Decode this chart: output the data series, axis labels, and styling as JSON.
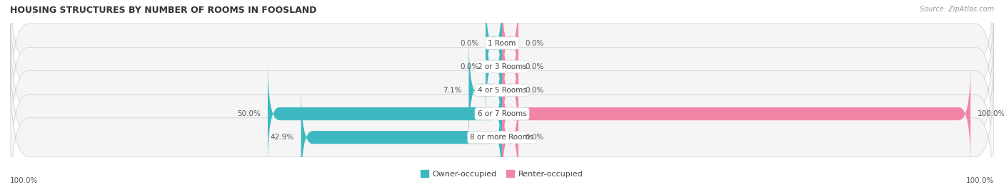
{
  "title": "HOUSING STRUCTURES BY NUMBER OF ROOMS IN FOOSLAND",
  "source": "Source: ZipAtlas.com",
  "categories": [
    "1 Room",
    "2 or 3 Rooms",
    "4 or 5 Rooms",
    "6 or 7 Rooms",
    "8 or more Rooms"
  ],
  "owner_values": [
    0.0,
    0.0,
    7.1,
    50.0,
    42.9
  ],
  "renter_values": [
    0.0,
    0.0,
    0.0,
    100.0,
    0.0
  ],
  "owner_color": "#3db8c0",
  "renter_color": "#f285a5",
  "bar_bg_color": "#e0e0e0",
  "bar_bg_color2": "#ececec",
  "figsize": [
    14.06,
    2.7
  ],
  "dpi": 100,
  "legend_labels": [
    "Owner-occupied",
    "Renter-occupied"
  ],
  "left_axis_label": "100.0%",
  "right_axis_label": "100.0%"
}
